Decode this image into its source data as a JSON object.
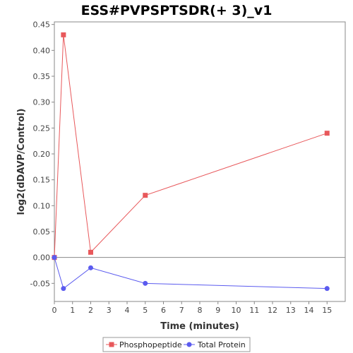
{
  "chart_data": {
    "type": "line",
    "title": "ESS#PVPSPTSDR(+ 3)_v1",
    "xlabel": "Time (minutes)",
    "ylabel": "log2(dDAVP/Control)",
    "xlim": [
      0,
      16
    ],
    "ylim": [
      -0.085,
      0.455
    ],
    "x_ticks": [
      0,
      1,
      2,
      3,
      4,
      5,
      6,
      7,
      8,
      9,
      10,
      11,
      12,
      13,
      14,
      15
    ],
    "y_ticks": [
      -0.05,
      0.0,
      0.05,
      0.1,
      0.15,
      0.2,
      0.25,
      0.3,
      0.35,
      0.4,
      0.45
    ],
    "y_tick_labels": [
      "-0.05",
      "0.00",
      "0.05",
      "0.10",
      "0.15",
      "0.20",
      "0.25",
      "0.30",
      "0.35",
      "0.40",
      "0.45"
    ],
    "zero_line": true,
    "grid": false,
    "legend_position": "bottom",
    "series": [
      {
        "name": "Phosphopeptide",
        "color": "#e8585b",
        "marker": "square",
        "x": [
          0,
          0.5,
          2,
          5,
          15
        ],
        "y": [
          0.0,
          0.43,
          0.01,
          0.12,
          0.24
        ]
      },
      {
        "name": "Total Protein",
        "color": "#5b5bef",
        "marker": "circle",
        "x": [
          0,
          0.5,
          2,
          5,
          15
        ],
        "y": [
          0.0,
          -0.06,
          -0.02,
          -0.05,
          -0.06
        ]
      }
    ]
  }
}
